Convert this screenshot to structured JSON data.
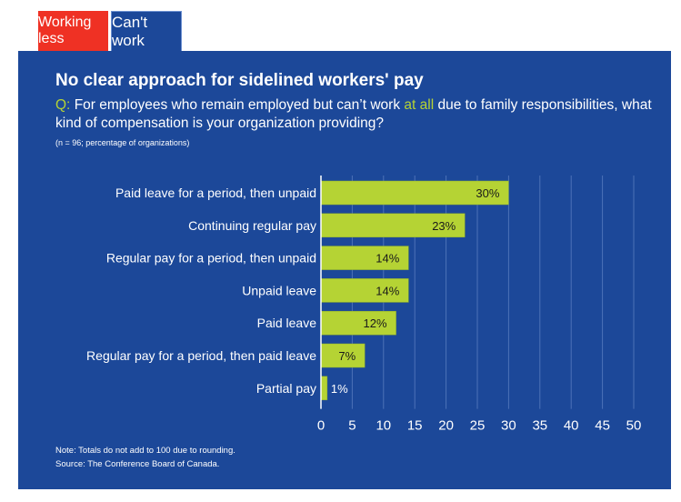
{
  "tabs": [
    {
      "label": "Working less",
      "color": "#EF3124"
    },
    {
      "label": "Can't work",
      "color": "#1C4899",
      "active": true
    }
  ],
  "title": "No clear approach for sidelined workers' pay",
  "question": {
    "prefix": "Q:",
    "part1": "For employees who remain employed but can’t work",
    "highlight": "at all",
    "part2": "due to family responsibilities, what kind of compensation is your organization providing?"
  },
  "sample": "(n = 96; percentage of organizations)",
  "note": "Note: Totals do not add to 100 due to rounding.",
  "source": "Source: The Conference Board of Canada.",
  "colors": {
    "panel": "#1C4899",
    "bar": "#B5D334",
    "accent": "#B5D334"
  },
  "chart_data": {
    "type": "bar",
    "orientation": "horizontal",
    "categories": [
      "Paid leave for a period, then unpaid",
      "Continuing regular pay",
      "Regular pay for a period, then unpaid",
      "Unpaid leave",
      "Paid leave",
      "Regular pay for a period, then paid leave",
      "Partial pay"
    ],
    "values": [
      30,
      23,
      14,
      14,
      12,
      7,
      1
    ],
    "labels": [
      "30%",
      "23%",
      "14%",
      "14%",
      "12%",
      "7%",
      "1%"
    ],
    "xlim": [
      0,
      50
    ],
    "xticks": [
      "0",
      "5",
      "10",
      "15",
      "20",
      "25",
      "30",
      "35",
      "40",
      "45",
      "50"
    ],
    "grid": true
  }
}
